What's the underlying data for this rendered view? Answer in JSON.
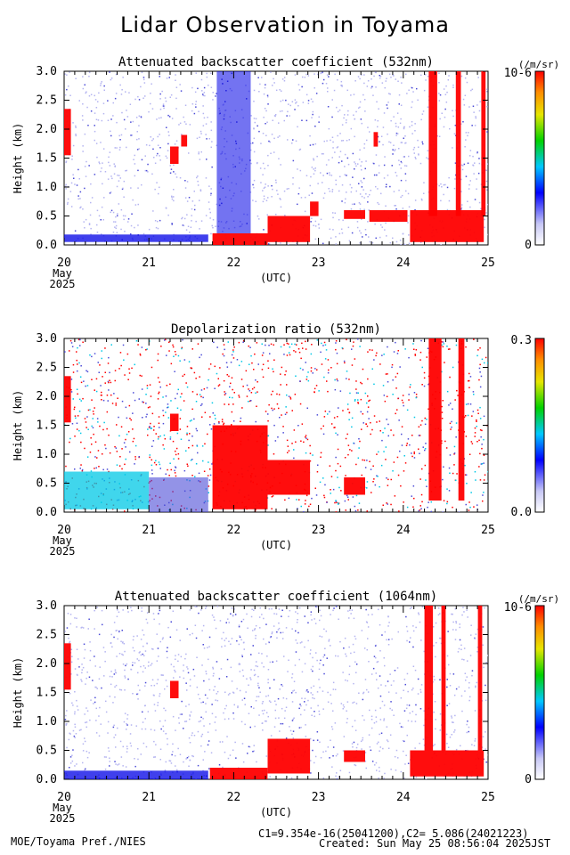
{
  "title": "Lidar Observation in Toyama",
  "footer": {
    "credit": "MOE/Toyama Pref./NIES",
    "calibration": "C1=9.354e-16(25041200),C2= 5.086(24021223)",
    "created": "Created: Sun May 25 08:56:04 2025JST"
  },
  "colors": [
    "#ffffff",
    "#b4b4f0",
    "#4b4bd7",
    "#0000e6",
    "#00c8e6",
    "#00d250",
    "#dcdc00",
    "#ff8c00",
    "#ff0000"
  ],
  "chart_data": [
    {
      "type": "heatmap",
      "title": "Attenuated backscatter coefficient (532nm)",
      "ylabel": "Height (km)",
      "xlabel": "(UTC)",
      "x_ticks": [
        "20",
        "21",
        "22",
        "23",
        "24",
        "25"
      ],
      "x_tick_sub": [
        "May",
        "2025"
      ],
      "xlim_days": [
        20,
        25
      ],
      "y_ticks": [
        "0.0",
        "0.5",
        "1.0",
        "1.5",
        "2.0",
        "2.5",
        "3.0"
      ],
      "ylim": [
        0,
        3
      ],
      "colorbar": {
        "unit": "(/m/sr)",
        "max_label": "10-6",
        "min_label": "0"
      },
      "features": [
        {
          "kind": "cloud",
          "x": [
            20.0,
            20.08
          ],
          "y": [
            1.55,
            2.35
          ]
        },
        {
          "kind": "cloud",
          "x": [
            21.25,
            21.35
          ],
          "y": [
            1.4,
            1.7
          ]
        },
        {
          "kind": "cloud",
          "x": [
            21.38,
            21.45
          ],
          "y": [
            1.7,
            1.9
          ]
        },
        {
          "kind": "cloud",
          "x": [
            21.75,
            22.4
          ],
          "y": [
            0.0,
            0.2
          ]
        },
        {
          "kind": "cloud",
          "x": [
            22.4,
            22.9
          ],
          "y": [
            0.05,
            0.5
          ]
        },
        {
          "kind": "cloud",
          "x": [
            22.9,
            23.0
          ],
          "y": [
            0.5,
            0.75
          ]
        },
        {
          "kind": "cloud",
          "x": [
            23.3,
            23.55
          ],
          "y": [
            0.45,
            0.6
          ]
        },
        {
          "kind": "cloud",
          "x": [
            23.65,
            23.7
          ],
          "y": [
            1.7,
            1.95
          ]
        },
        {
          "kind": "cloud",
          "x": [
            23.6,
            24.05
          ],
          "y": [
            0.4,
            0.6
          ]
        },
        {
          "kind": "cloud",
          "x": [
            24.08,
            24.95
          ],
          "y": [
            0.05,
            0.6
          ]
        },
        {
          "kind": "cloud",
          "x": [
            24.3,
            24.4
          ],
          "y": [
            0.5,
            3.0
          ]
        },
        {
          "kind": "cloud",
          "x": [
            24.62,
            24.68
          ],
          "y": [
            0.5,
            3.0
          ]
        },
        {
          "kind": "cloud",
          "x": [
            24.92,
            24.97
          ],
          "y": [
            0.5,
            3.0
          ]
        },
        {
          "kind": "aerosol",
          "x": [
            20.0,
            21.7
          ],
          "y": [
            0.05,
            0.18
          ]
        },
        {
          "kind": "dense",
          "x": [
            21.8,
            22.2
          ],
          "y": [
            0.2,
            3.0
          ]
        }
      ]
    },
    {
      "type": "heatmap",
      "title": "Depolarization ratio (532nm)",
      "ylabel": "Height (km)",
      "xlabel": "(UTC)",
      "x_ticks": [
        "20",
        "21",
        "22",
        "23",
        "24",
        "25"
      ],
      "x_tick_sub": [
        "May",
        "2025"
      ],
      "xlim_days": [
        20,
        25
      ],
      "y_ticks": [
        "0.0",
        "0.5",
        "1.0",
        "1.5",
        "2.0",
        "2.5",
        "3.0"
      ],
      "ylim": [
        0,
        3
      ],
      "colorbar": {
        "unit": "",
        "max_label": "0.3",
        "min_label": "0.0"
      },
      "features": [
        {
          "kind": "cloud",
          "x": [
            20.0,
            20.08
          ],
          "y": [
            1.55,
            2.35
          ]
        },
        {
          "kind": "cloud",
          "x": [
            21.25,
            21.35
          ],
          "y": [
            1.4,
            1.7
          ]
        },
        {
          "kind": "cloud",
          "x": [
            21.75,
            22.4
          ],
          "y": [
            0.05,
            1.5
          ]
        },
        {
          "kind": "cloud",
          "x": [
            22.4,
            22.9
          ],
          "y": [
            0.3,
            0.9
          ]
        },
        {
          "kind": "cloud",
          "x": [
            23.3,
            23.55
          ],
          "y": [
            0.3,
            0.6
          ]
        },
        {
          "kind": "cloud",
          "x": [
            24.3,
            24.45
          ],
          "y": [
            0.2,
            3.0
          ]
        },
        {
          "kind": "cloud",
          "x": [
            24.65,
            24.72
          ],
          "y": [
            0.2,
            3.0
          ]
        },
        {
          "kind": "aerosol",
          "x": [
            20.0,
            21.0
          ],
          "y": [
            0.05,
            0.7
          ]
        },
        {
          "kind": "low",
          "x": [
            21.0,
            21.7
          ],
          "y": [
            0.0,
            0.6
          ]
        }
      ]
    },
    {
      "type": "heatmap",
      "title": "Attenuated backscatter coefficient (1064nm)",
      "ylabel": "Height (km)",
      "xlabel": "(UTC)",
      "x_ticks": [
        "20",
        "21",
        "22",
        "23",
        "24",
        "25"
      ],
      "x_tick_sub": [
        "May",
        "2025"
      ],
      "xlim_days": [
        20,
        25
      ],
      "y_ticks": [
        "0.0",
        "0.5",
        "1.0",
        "1.5",
        "2.0",
        "2.5",
        "3.0"
      ],
      "ylim": [
        0,
        3
      ],
      "colorbar": {
        "unit": "(/m/sr)",
        "max_label": "10-6",
        "min_label": "0"
      },
      "features": [
        {
          "kind": "cloud",
          "x": [
            20.0,
            20.08
          ],
          "y": [
            1.55,
            2.35
          ]
        },
        {
          "kind": "cloud",
          "x": [
            21.25,
            21.35
          ],
          "y": [
            1.4,
            1.7
          ]
        },
        {
          "kind": "cloud",
          "x": [
            21.72,
            22.4
          ],
          "y": [
            0.0,
            0.2
          ]
        },
        {
          "kind": "cloud",
          "x": [
            22.4,
            22.9
          ],
          "y": [
            0.1,
            0.7
          ]
        },
        {
          "kind": "cloud",
          "x": [
            23.3,
            23.55
          ],
          "y": [
            0.3,
            0.5
          ]
        },
        {
          "kind": "cloud",
          "x": [
            24.08,
            24.95
          ],
          "y": [
            0.05,
            0.5
          ]
        },
        {
          "kind": "cloud",
          "x": [
            24.25,
            24.35
          ],
          "y": [
            0.5,
            3.0
          ]
        },
        {
          "kind": "cloud",
          "x": [
            24.45,
            24.5
          ],
          "y": [
            0.5,
            3.0
          ]
        },
        {
          "kind": "cloud",
          "x": [
            24.88,
            24.93
          ],
          "y": [
            0.5,
            3.0
          ]
        },
        {
          "kind": "aerosol",
          "x": [
            20.0,
            21.7
          ],
          "y": [
            0.0,
            0.15
          ]
        }
      ]
    }
  ]
}
